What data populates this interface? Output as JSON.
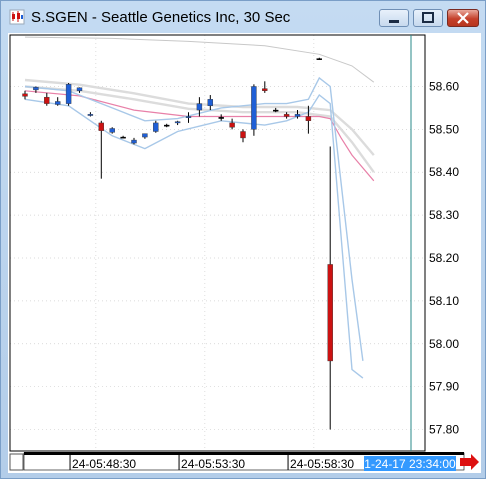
{
  "window": {
    "title": "S.SGEN - Seattle Genetics Inc, 30 Sec",
    "icon": "candlestick-app-icon",
    "buttons": [
      "minimize",
      "maximize",
      "close"
    ]
  },
  "chart_data": {
    "type": "candlestick",
    "ylim": [
      57.75,
      58.72
    ],
    "yticks": [
      58.6,
      58.5,
      58.4,
      58.3,
      58.2,
      58.1,
      58.0,
      57.9,
      57.8
    ],
    "ytick_labels": [
      "58.60",
      "58.50",
      "58.40",
      "58.30",
      "58.20",
      "58.10",
      "58.00",
      "57.90",
      "57.80"
    ],
    "xtick_labels": [
      "24-05:48:30",
      "24-05:53:30",
      "24-05:58:30"
    ],
    "xtick_bars": [
      4.5,
      14.5,
      24.5
    ],
    "current_time": "1-24-17 23:34:00",
    "grid": true,
    "colors": {
      "up": "#1f5fd6",
      "down": "#cc1111",
      "doji": "#000000",
      "band": "#a8c8e8",
      "ma": "#e880a8",
      "ma_slow": "#dcdcdc",
      "ma_top": "#c8c8c8",
      "crosshair": "#2a8a8a",
      "time_label_bg": "#3399ff"
    },
    "candles": [
      {
        "o": 58.583,
        "h": 58.59,
        "l": 58.57,
        "c": 58.577
      },
      {
        "o": 58.592,
        "h": 58.6,
        "l": 58.585,
        "c": 58.598
      },
      {
        "o": 58.575,
        "h": 58.585,
        "l": 58.555,
        "c": 58.56
      },
      {
        "o": 58.558,
        "h": 58.575,
        "l": 58.555,
        "c": 58.565
      },
      {
        "o": 58.56,
        "h": 58.608,
        "l": 58.555,
        "c": 58.605
      },
      {
        "o": 58.59,
        "h": 58.598,
        "l": 58.585,
        "c": 58.597
      },
      {
        "o": 58.533,
        "h": 58.54,
        "l": 58.53,
        "c": 58.535
      },
      {
        "o": 58.515,
        "h": 58.52,
        "l": 58.385,
        "c": 58.497
      },
      {
        "o": 58.493,
        "h": 58.505,
        "l": 58.49,
        "c": 58.502
      },
      {
        "o": 58.482,
        "h": 58.485,
        "l": 58.48,
        "c": 58.482
      },
      {
        "o": 58.468,
        "h": 58.48,
        "l": 58.465,
        "c": 58.475
      },
      {
        "o": 58.482,
        "h": 58.49,
        "l": 58.478,
        "c": 58.49
      },
      {
        "o": 58.495,
        "h": 58.52,
        "l": 58.492,
        "c": 58.515
      },
      {
        "o": 58.51,
        "h": 58.513,
        "l": 58.505,
        "c": 58.51
      },
      {
        "o": 58.515,
        "h": 58.52,
        "l": 58.51,
        "c": 58.518
      },
      {
        "o": 58.528,
        "h": 58.54,
        "l": 58.515,
        "c": 58.53
      },
      {
        "o": 58.545,
        "h": 58.575,
        "l": 58.53,
        "c": 58.56
      },
      {
        "o": 58.555,
        "h": 58.58,
        "l": 58.545,
        "c": 58.57
      },
      {
        "o": 58.528,
        "h": 58.535,
        "l": 58.52,
        "c": 58.528
      },
      {
        "o": 58.515,
        "h": 58.525,
        "l": 58.5,
        "c": 58.505
      },
      {
        "o": 58.495,
        "h": 58.5,
        "l": 58.47,
        "c": 58.48
      },
      {
        "o": 58.5,
        "h": 58.605,
        "l": 58.485,
        "c": 58.6
      },
      {
        "o": 58.595,
        "h": 58.612,
        "l": 58.585,
        "c": 58.59
      },
      {
        "o": 58.545,
        "h": 58.55,
        "l": 58.54,
        "c": 58.545
      },
      {
        "o": 58.535,
        "h": 58.54,
        "l": 58.525,
        "c": 58.53
      },
      {
        "o": 58.53,
        "h": 58.545,
        "l": 58.525,
        "c": 58.535
      },
      {
        "o": 58.53,
        "h": 58.555,
        "l": 58.49,
        "c": 58.52
      },
      {
        "o": 58.665,
        "h": 58.667,
        "l": 58.662,
        "c": 58.665
      },
      {
        "o": 58.185,
        "h": 58.46,
        "l": 57.8,
        "c": 57.96
      }
    ],
    "bollinger_upper": [
      [
        0,
        58.6
      ],
      [
        4,
        58.59
      ],
      [
        8,
        58.55
      ],
      [
        11,
        58.52
      ],
      [
        14,
        58.525
      ],
      [
        18,
        58.55
      ],
      [
        22,
        58.56
      ],
      [
        24,
        58.56
      ],
      [
        26,
        58.57
      ],
      [
        27,
        58.62
      ],
      [
        28,
        58.6
      ],
      [
        30,
        58.15
      ],
      [
        31,
        57.96
      ]
    ],
    "bollinger_lower": [
      [
        0,
        58.57
      ],
      [
        4,
        58.555
      ],
      [
        8,
        58.485
      ],
      [
        11,
        58.455
      ],
      [
        14,
        58.495
      ],
      [
        18,
        58.52
      ],
      [
        22,
        58.51
      ],
      [
        24,
        58.52
      ],
      [
        26,
        58.54
      ],
      [
        27,
        58.58
      ],
      [
        28,
        58.56
      ],
      [
        30,
        57.94
      ],
      [
        31,
        57.92
      ]
    ],
    "ma_fast": [
      [
        0,
        58.59
      ],
      [
        5,
        58.578
      ],
      [
        10,
        58.545
      ],
      [
        15,
        58.53
      ],
      [
        20,
        58.53
      ],
      [
        25,
        58.53
      ],
      [
        27,
        58.53
      ],
      [
        28,
        58.525
      ],
      [
        29,
        58.48
      ],
      [
        30,
        58.44
      ],
      [
        32,
        58.38
      ]
    ],
    "ma_slow": [
      [
        0,
        58.6
      ],
      [
        5,
        58.59
      ],
      [
        10,
        58.57
      ],
      [
        15,
        58.548
      ],
      [
        20,
        58.54
      ],
      [
        25,
        58.54
      ],
      [
        28,
        58.53
      ],
      [
        30,
        58.47
      ],
      [
        32,
        58.4
      ]
    ],
    "ma_slow_2": [
      [
        0,
        58.615
      ],
      [
        5,
        58.604
      ],
      [
        10,
        58.584
      ],
      [
        15,
        58.56
      ],
      [
        20,
        58.552
      ],
      [
        25,
        58.552
      ],
      [
        28,
        58.545
      ],
      [
        30,
        58.5
      ],
      [
        32,
        58.44
      ]
    ],
    "ma_top": [
      [
        0,
        58.715
      ],
      [
        8,
        58.712
      ],
      [
        15,
        58.705
      ],
      [
        22,
        58.695
      ],
      [
        27,
        58.675
      ],
      [
        30,
        58.648
      ],
      [
        32,
        58.61
      ]
    ]
  }
}
